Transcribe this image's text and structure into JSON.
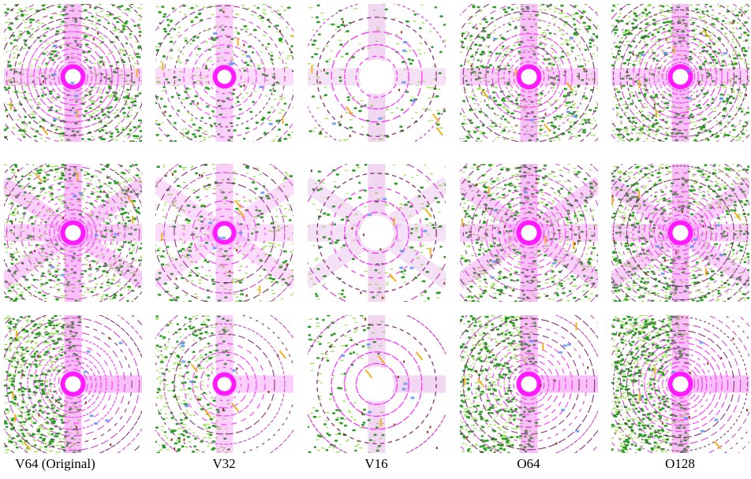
{
  "figure": {
    "columns": [
      "V64 (Original)",
      "V32",
      "V16",
      "O64",
      "O128"
    ]
  }
}
